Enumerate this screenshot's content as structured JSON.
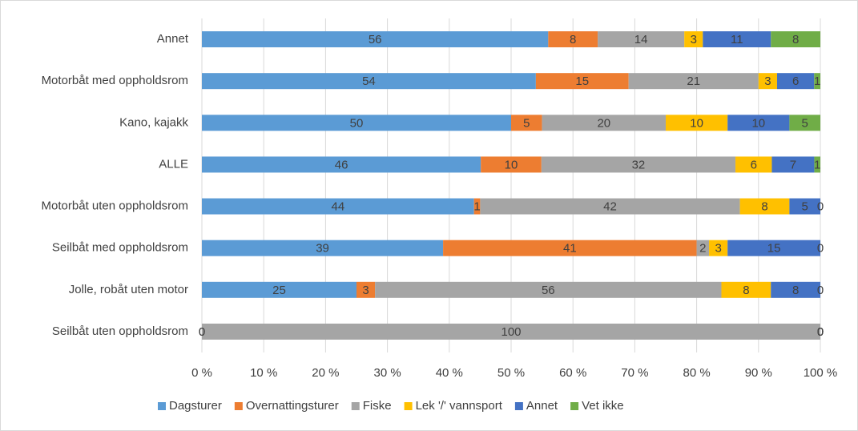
{
  "chart_data": {
    "type": "bar",
    "orientation": "horizontal",
    "stacked": "percent",
    "categories": [
      "Annet",
      "Motorbåt med oppholdsrom",
      "Kano, kajakk",
      "ALLE",
      "Motorbåt uten oppholdsrom",
      "Seilbåt med oppholdsrom",
      "Jolle, robåt uten motor",
      "Seilbåt uten oppholdsrom"
    ],
    "series": [
      {
        "name": "Dagsturer",
        "color": "#5b9bd5",
        "values": [
          56,
          54,
          50,
          46,
          44,
          39,
          25,
          0
        ]
      },
      {
        "name": "Overnattingsturer",
        "color": "#ed7d31",
        "values": [
          8,
          15,
          5,
          10,
          1,
          41,
          3,
          0
        ]
      },
      {
        "name": "Fiske",
        "color": "#a5a5a5",
        "values": [
          14,
          21,
          20,
          32,
          42,
          2,
          56,
          100
        ]
      },
      {
        "name": "Lek '/' vannsport",
        "color": "#ffc000",
        "values": [
          3,
          3,
          10,
          6,
          8,
          3,
          8,
          0
        ]
      },
      {
        "name": "Annet",
        "color": "#4472c4",
        "values": [
          11,
          6,
          10,
          7,
          5,
          15,
          8,
          0
        ]
      },
      {
        "name": "Vet ikke",
        "color": "#70ad47",
        "values": [
          8,
          1,
          5,
          1,
          0,
          0,
          0,
          0
        ]
      }
    ],
    "xlim": [
      0,
      100
    ],
    "xticks": [
      {
        "value": 0,
        "label": "0 %"
      },
      {
        "value": 10,
        "label": "10 %"
      },
      {
        "value": 20,
        "label": "20 %"
      },
      {
        "value": 30,
        "label": "30 %"
      },
      {
        "value": 40,
        "label": "40 %"
      },
      {
        "value": 50,
        "label": "50 %"
      },
      {
        "value": 60,
        "label": "60 %"
      },
      {
        "value": 70,
        "label": "70 %"
      },
      {
        "value": 80,
        "label": "80 %"
      },
      {
        "value": 90,
        "label": "90 %"
      },
      {
        "value": 100,
        "label": "100 %"
      }
    ],
    "grid": true,
    "legend": "bottom"
  }
}
